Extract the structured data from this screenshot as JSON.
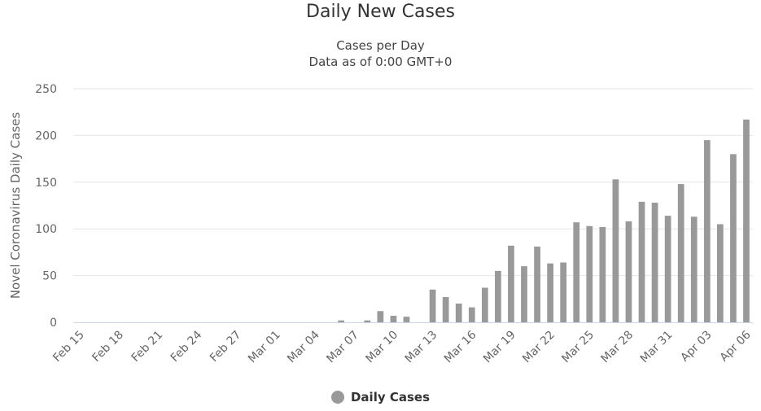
{
  "chart_data": {
    "type": "bar",
    "title": "Daily New Cases",
    "subtitle_lines": [
      "Cases per Day",
      "Data as of 0:00 GMT+0"
    ],
    "ylabel": "Novel Coronavirus Daily Cases",
    "xlabel": "",
    "ylim": [
      0,
      250
    ],
    "y_ticks": [
      0,
      50,
      100,
      150,
      200,
      250
    ],
    "grid": true,
    "legend_position": "bottom",
    "bar_color": "#999999",
    "categories": [
      "Feb 15",
      "Feb 16",
      "Feb 17",
      "Feb 18",
      "Feb 19",
      "Feb 20",
      "Feb 21",
      "Feb 22",
      "Feb 23",
      "Feb 24",
      "Feb 25",
      "Feb 26",
      "Feb 27",
      "Feb 28",
      "Feb 29",
      "Mar 01",
      "Mar 02",
      "Mar 03",
      "Mar 04",
      "Mar 05",
      "Mar 06",
      "Mar 07",
      "Mar 08",
      "Mar 09",
      "Mar 10",
      "Mar 11",
      "Mar 12",
      "Mar 13",
      "Mar 14",
      "Mar 15",
      "Mar 16",
      "Mar 17",
      "Mar 18",
      "Mar 19",
      "Mar 20",
      "Mar 21",
      "Mar 22",
      "Mar 23",
      "Mar 24",
      "Mar 25",
      "Mar 26",
      "Mar 27",
      "Mar 28",
      "Mar 29",
      "Mar 30",
      "Mar 31",
      "Apr 01",
      "Apr 02",
      "Apr 03",
      "Apr 04",
      "Apr 05",
      "Apr 06"
    ],
    "x_tick_labels": [
      "Feb 15",
      "Feb 18",
      "Feb 21",
      "Feb 24",
      "Feb 27",
      "Mar 01",
      "Mar 04",
      "Mar 07",
      "Mar 10",
      "Mar 13",
      "Mar 16",
      "Mar 19",
      "Mar 22",
      "Mar 25",
      "Mar 28",
      "Mar 31",
      "Apr 03",
      "Apr 06"
    ],
    "series": [
      {
        "name": "Daily Cases",
        "values": [
          0,
          0,
          0,
          0,
          0,
          0,
          0,
          0,
          0,
          0,
          0,
          0,
          0,
          0,
          0,
          0,
          0,
          0,
          0,
          0,
          2,
          0,
          2,
          12,
          7,
          6,
          0,
          35,
          27,
          20,
          16,
          37,
          55,
          82,
          60,
          81,
          63,
          64,
          107,
          103,
          102,
          153,
          108,
          129,
          128,
          114,
          148,
          113,
          195,
          105,
          180,
          217
        ]
      }
    ]
  }
}
